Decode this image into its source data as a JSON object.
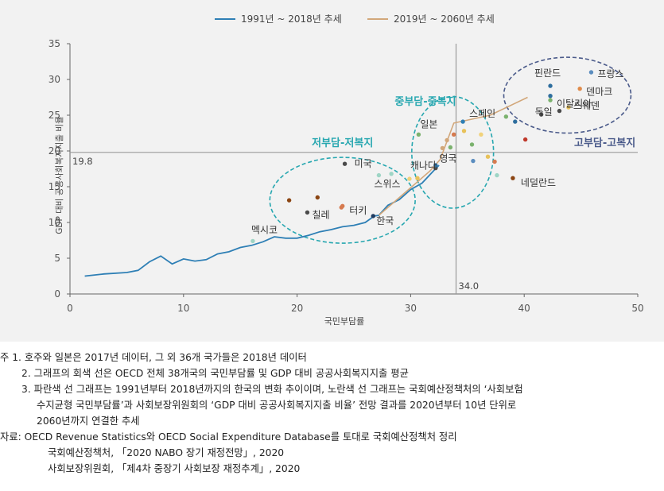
{
  "chart_data": {
    "type": "scatter",
    "xlabel": "국민부담률",
    "ylabel": "GDP 대비 공공사회복지지출 비율",
    "xlim": [
      0,
      50
    ],
    "ylim": [
      0,
      35
    ],
    "xticks": [
      0,
      10,
      20,
      30,
      40,
      50
    ],
    "yticks": [
      0,
      5,
      10,
      15,
      20,
      25,
      30,
      35
    ],
    "legend": {
      "placement": "top-center",
      "items": [
        {
          "label": "1991년 ~ 2018년 추세",
          "color": "#2e7fb5"
        },
        {
          "label": "2019년 ~ 2060년 추세",
          "color": "#d2a77a"
        }
      ]
    },
    "reference_lines": {
      "x": 34.0,
      "y": 19.8,
      "x_label": "34.0",
      "y_label": "19.8",
      "color": "#9a9a9a"
    },
    "series": [
      {
        "name": "1991년 ~ 2018년 추세",
        "color": "#2e7fb5",
        "points": [
          [
            1.3,
            2.5
          ],
          [
            3,
            2.8
          ],
          [
            5,
            3.0
          ],
          [
            6,
            3.3
          ],
          [
            7,
            4.5
          ],
          [
            8,
            5.3
          ],
          [
            9,
            4.2
          ],
          [
            10,
            4.9
          ],
          [
            11,
            4.6
          ],
          [
            12,
            4.8
          ],
          [
            13,
            5.6
          ],
          [
            14,
            5.9
          ],
          [
            15,
            6.5
          ],
          [
            16,
            6.8
          ],
          [
            17,
            7.3
          ],
          [
            18,
            8.0
          ],
          [
            19,
            7.8
          ],
          [
            20,
            7.8
          ],
          [
            21,
            8.2
          ],
          [
            22,
            8.7
          ],
          [
            23,
            9.0
          ],
          [
            24,
            9.4
          ],
          [
            25,
            9.6
          ],
          [
            26,
            10.0
          ],
          [
            26.8,
            10.9
          ],
          [
            27.2,
            11.0
          ],
          [
            28,
            12.4
          ],
          [
            29,
            13.2
          ],
          [
            30,
            14.6
          ],
          [
            31,
            15.5
          ],
          [
            32,
            17.2
          ],
          [
            32.5,
            18.0
          ]
        ]
      },
      {
        "name": "2019년 ~ 2060년 추세",
        "color": "#d2a77a",
        "points": [
          [
            27.2,
            11.0
          ],
          [
            31.7,
            17.2
          ],
          [
            32.6,
            18.8
          ],
          [
            33.8,
            23.9
          ],
          [
            37.0,
            25.0
          ],
          [
            40.3,
            27.5
          ]
        ]
      }
    ],
    "countries": [
      {
        "label": "미국",
        "x": 24.2,
        "y": 18.2,
        "color": "#4a4a4a",
        "shown": true
      },
      {
        "label": "스위스",
        "x": 27.2,
        "y": 16.6,
        "color": "#9ed5c5",
        "shown": true
      },
      {
        "label": "칠레",
        "x": 20.9,
        "y": 11.4,
        "color": "#4a4a4a",
        "shown": true
      },
      {
        "label": "터키",
        "x": 23.9,
        "y": 12.1,
        "color": "#d67a4f",
        "shown": true
      },
      {
        "label": "한국",
        "x": 26.7,
        "y": 10.9,
        "color": "#1e3a5f",
        "shown": true
      },
      {
        "label": "멕시코",
        "x": 16.1,
        "y": 7.4,
        "color": "#9ed5c5",
        "shown": true
      },
      {
        "label": "일본",
        "x": 30.7,
        "y": 22.3,
        "color": "#7bb26e",
        "shown": true
      },
      {
        "label": "스페인",
        "x": 34.6,
        "y": 24.1,
        "color": "#2e7fb5",
        "shown": true
      },
      {
        "label": "영국",
        "x": 33.5,
        "y": 20.5,
        "color": "#7bb26e",
        "shown": true
      },
      {
        "label": "캐나다",
        "x": 32.2,
        "y": 17.6,
        "color": "#4a4a4a",
        "shown": true
      },
      {
        "label": "네덜란드",
        "x": 39.0,
        "y": 16.2,
        "color": "#8b4513",
        "shown": true
      },
      {
        "label": "핀란드",
        "x": 42.3,
        "y": 29.1,
        "color": "#2e6e9e",
        "shown": true
      },
      {
        "label": "프랑스",
        "x": 45.9,
        "y": 31.0,
        "color": "#5b8dbf",
        "shown": true
      },
      {
        "label": "덴마크",
        "x": 44.9,
        "y": 28.7,
        "color": "#e08b4a",
        "shown": true
      },
      {
        "label": "스웨덴",
        "x": 43.9,
        "y": 26.1,
        "color": "#e8c25a",
        "shown": true
      },
      {
        "label": "독일",
        "x": 41.5,
        "y": 25.1,
        "color": "#4a4a4a",
        "shown": true
      },
      {
        "label": "이탈리아",
        "x": 42.3,
        "y": 27.7,
        "color": "#2e6e9e",
        "shown": true
      },
      {
        "x": 19.3,
        "y": 13.1,
        "color": "#8b4513",
        "shown": false
      },
      {
        "x": 21.8,
        "y": 13.5,
        "color": "#8b4513",
        "shown": false
      },
      {
        "x": 24.0,
        "y": 12.3,
        "color": "#d67a4f",
        "shown": false
      },
      {
        "x": 28.3,
        "y": 16.8,
        "color": "#9ed5c5",
        "shown": false
      },
      {
        "x": 29.9,
        "y": 16.1,
        "color": "#f1d27a",
        "shown": false
      },
      {
        "x": 30.6,
        "y": 16.2,
        "color": "#e8c25a",
        "shown": false
      },
      {
        "x": 32.2,
        "y": 18.0,
        "color": "#2e6e9e",
        "shown": false
      },
      {
        "x": 32.8,
        "y": 20.4,
        "color": "#d2a77a",
        "shown": false
      },
      {
        "x": 33.2,
        "y": 21.5,
        "color": "#d2a77a",
        "shown": false
      },
      {
        "x": 33.8,
        "y": 22.3,
        "color": "#d67a4f",
        "shown": false
      },
      {
        "x": 34.7,
        "y": 22.8,
        "color": "#e8c25a",
        "shown": false
      },
      {
        "x": 35.4,
        "y": 20.9,
        "color": "#7bb26e",
        "shown": false
      },
      {
        "x": 35.5,
        "y": 18.6,
        "color": "#5b8dbf",
        "shown": false
      },
      {
        "x": 36.2,
        "y": 22.3,
        "color": "#f1d27a",
        "shown": false
      },
      {
        "x": 36.8,
        "y": 19.2,
        "color": "#e8c25a",
        "shown": false
      },
      {
        "x": 37.4,
        "y": 18.5,
        "color": "#d67a4f",
        "shown": false
      },
      {
        "x": 37.6,
        "y": 16.6,
        "color": "#9ed5c5",
        "shown": false
      },
      {
        "x": 38.4,
        "y": 24.8,
        "color": "#7bb26e",
        "shown": false
      },
      {
        "x": 39.2,
        "y": 24.1,
        "color": "#2e6e9e",
        "shown": false
      },
      {
        "x": 40.1,
        "y": 21.6,
        "color": "#c0392b",
        "shown": false
      },
      {
        "x": 42.3,
        "y": 27.1,
        "color": "#7bb26e",
        "shown": false
      },
      {
        "x": 43.1,
        "y": 25.6,
        "color": "#4a4a4a",
        "shown": false
      }
    ],
    "groups": [
      {
        "label": "저부담-저복지",
        "color": "#27a7b0",
        "ellipse": {
          "cx": 24.0,
          "cy": 13.1,
          "rx": 6.4,
          "ry": 6.0
        },
        "label_pos": [
          24.0,
          21.2
        ]
      },
      {
        "label": "중부담-중복지",
        "color": "#27a7b0",
        "ellipse": {
          "cx": 33.7,
          "cy": 19.8,
          "rx": 3.6,
          "ry": 7.8
        },
        "label_pos": [
          31.3,
          27.0
        ]
      },
      {
        "label": "고부담-고복지",
        "color": "#4a5a8a",
        "ellipse": {
          "cx": 43.8,
          "cy": 27.8,
          "rx": 5.6,
          "ry": 5.3
        },
        "label_pos": [
          47.1,
          21.2
        ]
      }
    ]
  },
  "notes": [
    "주 1. 호주와 일본은 2017년 데이터, 그 외 36개 국가들은 2018년 데이터",
    "2. 그래프의 회색 선은 OECD 전체 38개국의 국민부담률 및 GDP 대비 공공사회복지지출 평균",
    "3. 파란색 선 그래프는 1991년부터 2018년까지의 한국의 변화 추이이며, 노란색 선 그래프는 국회예산정책처의 ‘사회보험",
    "수지균형 국민부담률’과 사회보장위원회의 ‘GDP 대비 공공사회복지지출 비율’ 전망 결과를 2020년부터 10년 단위로",
    "2060년까지 연결한 추세",
    "자료: OECD Revenue Statistics와 OECD Social Expenditure Database를 토대로 국회예산정책처 정리",
    "국회예산정책처, 「2020 NABO 장기 재정전망」, 2020",
    "사회보장위원회, 「제4차 중장기 사회보장 재정추계」, 2020"
  ]
}
